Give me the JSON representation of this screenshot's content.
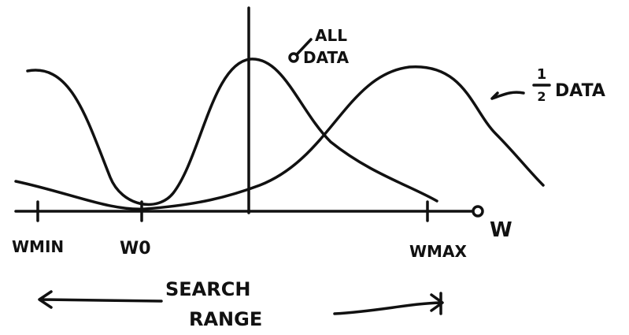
{
  "curves": {
    "all_data": {
      "label_line1": "ALL",
      "label_line2": "DATA"
    },
    "half_data": {
      "fraction_numerator": "1",
      "fraction_denominator": "2",
      "label": "DATA"
    }
  },
  "axis": {
    "w_min": "WMIN",
    "w_0": "W0",
    "w_max": "WMAX",
    "variable": "W"
  },
  "range": {
    "line1": "SEARCH",
    "line2": "RANGE"
  }
}
